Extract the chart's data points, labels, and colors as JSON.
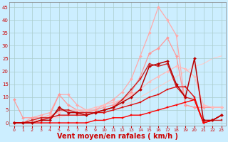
{
  "background_color": "#cceeff",
  "grid_color": "#aacccc",
  "xlabel": "Vent moyen/en rafales ( km/h )",
  "xlabel_color": "#cc0000",
  "xlabel_fontsize": 7,
  "xticks": [
    0,
    1,
    2,
    3,
    4,
    5,
    6,
    7,
    8,
    9,
    10,
    11,
    12,
    13,
    14,
    15,
    16,
    17,
    18,
    19,
    20,
    21,
    22,
    23
  ],
  "yticks": [
    0,
    5,
    10,
    15,
    20,
    25,
    30,
    35,
    40,
    45
  ],
  "ylim": [
    -1,
    47
  ],
  "xlim": [
    -0.5,
    23.5
  ],
  "lines": [
    {
      "x": [
        0,
        1,
        2,
        3,
        4,
        5,
        6,
        7,
        8,
        9,
        10,
        11,
        12,
        13,
        14,
        15,
        16,
        17,
        18,
        19,
        20,
        21,
        22,
        23
      ],
      "y": [
        0,
        0,
        1,
        1,
        2,
        2,
        3,
        3,
        4,
        4,
        5,
        6,
        7,
        8,
        10,
        12,
        14,
        16,
        18,
        20,
        22,
        23,
        25,
        26
      ],
      "color": "#ffcccc",
      "lw": 0.8,
      "marker": null,
      "ms": 0,
      "zorder": 1
    },
    {
      "x": [
        0,
        1,
        2,
        3,
        4,
        5,
        6,
        7,
        8,
        9,
        10,
        11,
        12,
        13,
        14,
        15,
        16,
        17,
        18,
        19,
        20,
        21,
        22,
        23
      ],
      "y": [
        0,
        0,
        2,
        3,
        4,
        11,
        11,
        7,
        5,
        5,
        7,
        9,
        12,
        17,
        26,
        35,
        45,
        40,
        34,
        7,
        6,
        6,
        6,
        6
      ],
      "color": "#ffaaaa",
      "lw": 0.9,
      "marker": "D",
      "ms": 2,
      "zorder": 2
    },
    {
      "x": [
        0,
        1,
        2,
        3,
        4,
        5,
        6,
        7,
        8,
        9,
        10,
        11,
        12,
        13,
        14,
        15,
        16,
        17,
        18,
        19,
        20,
        21,
        22,
        23
      ],
      "y": [
        9,
        2,
        2,
        2,
        3,
        11,
        7,
        5,
        4,
        5,
        6,
        7,
        9,
        12,
        18,
        27,
        29,
        33,
        26,
        7,
        6,
        6,
        6,
        6
      ],
      "color": "#ff9999",
      "lw": 0.9,
      "marker": "D",
      "ms": 2,
      "zorder": 2
    },
    {
      "x": [
        0,
        1,
        2,
        3,
        4,
        5,
        6,
        7,
        8,
        9,
        10,
        11,
        12,
        13,
        14,
        15,
        16,
        17,
        18,
        19,
        20,
        21,
        22,
        23
      ],
      "y": [
        0,
        0,
        1,
        2,
        3,
        4,
        5,
        5,
        5,
        6,
        7,
        8,
        9,
        11,
        13,
        16,
        18,
        20,
        22,
        21,
        18,
        7,
        6,
        6
      ],
      "color": "#ffbbbb",
      "lw": 0.9,
      "marker": "D",
      "ms": 2,
      "zorder": 3
    },
    {
      "x": [
        0,
        1,
        2,
        3,
        4,
        5,
        6,
        7,
        8,
        9,
        10,
        11,
        12,
        13,
        14,
        15,
        16,
        17,
        18,
        19,
        20,
        21,
        22,
        23
      ],
      "y": [
        0,
        0,
        1,
        2,
        2,
        5,
        5,
        4,
        4,
        4,
        5,
        6,
        9,
        13,
        17,
        23,
        22,
        23,
        14,
        10,
        9,
        0,
        1,
        1
      ],
      "color": "#cc2222",
      "lw": 1.0,
      "marker": "s",
      "ms": 2,
      "zorder": 4
    },
    {
      "x": [
        0,
        1,
        2,
        3,
        4,
        5,
        6,
        7,
        8,
        9,
        10,
        11,
        12,
        13,
        14,
        15,
        16,
        17,
        18,
        19,
        20,
        21,
        22,
        23
      ],
      "y": [
        0,
        0,
        0,
        1,
        1,
        6,
        4,
        4,
        3,
        4,
        5,
        6,
        8,
        10,
        13,
        22,
        23,
        24,
        15,
        10,
        25,
        1,
        1,
        3
      ],
      "color": "#bb0000",
      "lw": 1.1,
      "marker": "D",
      "ms": 2,
      "zorder": 5
    },
    {
      "x": [
        0,
        1,
        2,
        3,
        4,
        5,
        6,
        7,
        8,
        9,
        10,
        11,
        12,
        13,
        14,
        15,
        16,
        17,
        18,
        19,
        20,
        21,
        22,
        23
      ],
      "y": [
        0,
        0,
        0,
        1,
        2,
        3,
        3,
        3,
        3,
        4,
        4,
        5,
        6,
        7,
        8,
        10,
        11,
        13,
        14,
        14,
        10,
        0,
        1,
        3
      ],
      "color": "#dd1111",
      "lw": 1.0,
      "marker": "s",
      "ms": 2,
      "zorder": 4
    },
    {
      "x": [
        0,
        1,
        2,
        3,
        4,
        5,
        6,
        7,
        8,
        9,
        10,
        11,
        12,
        13,
        14,
        15,
        16,
        17,
        18,
        19,
        20,
        21,
        22,
        23
      ],
      "y": [
        0,
        0,
        0,
        0,
        0,
        0,
        0,
        0,
        0,
        1,
        1,
        2,
        2,
        3,
        3,
        4,
        5,
        6,
        7,
        8,
        9,
        0,
        1,
        3
      ],
      "color": "#ff0000",
      "lw": 1.0,
      "marker": "s",
      "ms": 2,
      "zorder": 4
    }
  ]
}
